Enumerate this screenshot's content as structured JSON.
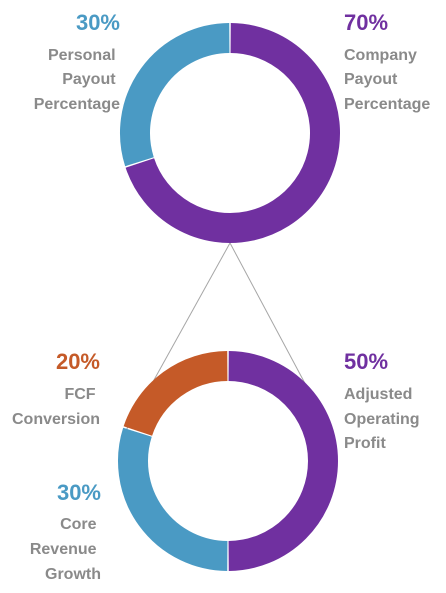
{
  "chart_data": [
    {
      "type": "pie",
      "style": "donut",
      "slices": [
        {
          "percent_label": "70%",
          "value": 70,
          "label_lines": [
            "Company",
            "Payout",
            "Percentage"
          ],
          "color": "#7030a0"
        },
        {
          "percent_label": "30%",
          "value": 30,
          "label_lines": [
            "Personal",
            "Payout",
            "Percentage"
          ],
          "color": "#4a9ac4"
        }
      ]
    },
    {
      "type": "pie",
      "style": "donut",
      "slices": [
        {
          "percent_label": "50%",
          "value": 50,
          "label_lines": [
            "Adjusted",
            "Operating",
            "Profit"
          ],
          "color": "#7030a0"
        },
        {
          "percent_label": "30%",
          "value": 30,
          "label_lines": [
            "Core",
            "Revenue",
            "Growth"
          ],
          "color": "#4a9ac4"
        },
        {
          "percent_label": "20%",
          "value": 20,
          "label_lines": [
            "FCF",
            "Conversion"
          ],
          "color": "#c55a28"
        }
      ]
    }
  ],
  "colors": {
    "connector_line": "#a6a6a6",
    "label_text": "#8a8a8a"
  }
}
